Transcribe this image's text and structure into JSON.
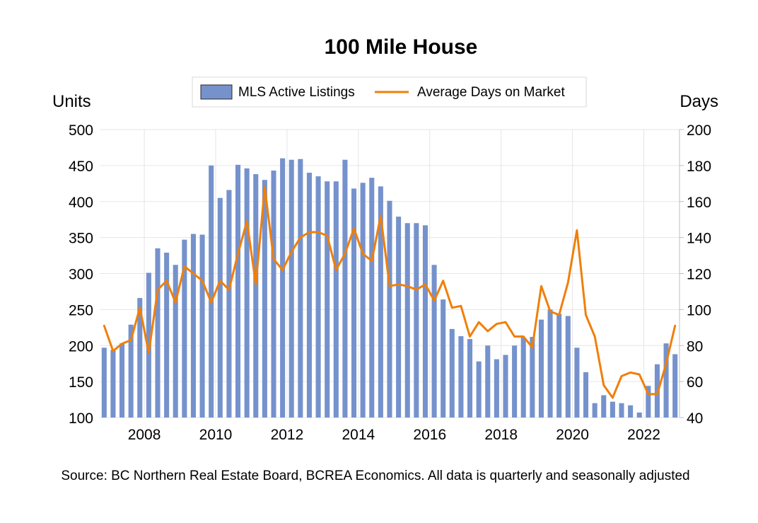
{
  "chart_data": {
    "type": "bar+line",
    "title": "100 Mile House",
    "source": "Source: BC Northern Real Estate Board, BCREA Economics. All data is quarterly and seasonally adjusted",
    "left_axis": {
      "label": "Units",
      "range": [
        100,
        500
      ],
      "ticks": [
        "100",
        "150",
        "200",
        "250",
        "300",
        "350",
        "400",
        "450",
        "500"
      ]
    },
    "right_axis": {
      "label": "Days",
      "range": [
        40,
        200
      ],
      "ticks": [
        "40",
        "60",
        "80",
        "100",
        "120",
        "140",
        "160",
        "180",
        "200"
      ]
    },
    "x_axis": {
      "ticks": [
        "2008",
        "2010",
        "2012",
        "2014",
        "2016",
        "2018",
        "2020",
        "2022"
      ],
      "start": "2006 Q4",
      "end": "2022 Q4",
      "frequency": "quarterly"
    },
    "grid": true,
    "legend_position": "top",
    "colors": {
      "bars": "#7592cc",
      "line": "#f07f09",
      "grid": "#e6e6e6"
    },
    "series": [
      {
        "name": "MLS Active Listings",
        "kind": "bar",
        "axis": "left",
        "values": [
          197,
          194,
          203,
          229,
          266,
          301,
          335,
          329,
          312,
          347,
          355,
          354,
          450,
          405,
          416,
          451,
          446,
          438,
          430,
          443,
          460,
          458,
          459,
          440,
          435,
          428,
          428,
          458,
          418,
          426,
          433,
          421,
          401,
          379,
          370,
          370,
          367,
          312,
          264,
          223,
          213,
          209,
          178,
          200,
          181,
          187,
          200,
          211,
          212,
          236,
          250,
          244,
          241,
          197,
          163,
          120,
          131,
          122,
          120,
          117,
          107,
          144,
          174,
          203,
          188
        ]
      },
      {
        "name": "Average Days on Market",
        "kind": "line",
        "axis": "right",
        "values": [
          91,
          77,
          81,
          83,
          101,
          76,
          111,
          116,
          104,
          124,
          120,
          116,
          104,
          116,
          111,
          131,
          149,
          114,
          168,
          128,
          122,
          132,
          140,
          143,
          143,
          141,
          122,
          131,
          145,
          131,
          127,
          152,
          113,
          114,
          113,
          111,
          114,
          105,
          116,
          101,
          102,
          85,
          93,
          88,
          92,
          93,
          85,
          85,
          79,
          113,
          99,
          97,
          115,
          144,
          97,
          85,
          58,
          51,
          63,
          65,
          64,
          53,
          53,
          70,
          91
        ]
      }
    ]
  }
}
